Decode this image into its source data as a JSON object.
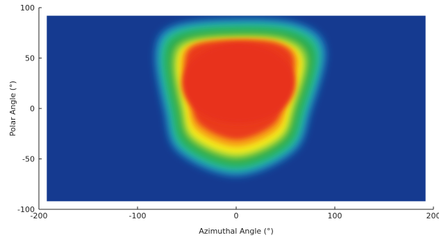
{
  "chart_data": {
    "type": "heatmap",
    "title": "",
    "xlabel": "Azimuthal Angle (°)",
    "ylabel": "Polar Angle (°)",
    "xlim": [
      -200,
      200
    ],
    "ylim": [
      -100,
      100
    ],
    "xticks": [
      -200,
      -100,
      0,
      100,
      200
    ],
    "yticks": [
      -100,
      -50,
      0,
      50,
      100
    ],
    "x_tick_labels": [
      "-200",
      "-100",
      "0",
      "100",
      "200"
    ],
    "y_tick_labels": [
      "-100",
      "-50",
      "0",
      "50",
      "100"
    ],
    "data_extent": {
      "x": [
        -192,
        192
      ],
      "y": [
        -92,
        92
      ]
    },
    "grid": false,
    "colormap": [
      "#16378f",
      "#1f8fd0",
      "#2cbf8a",
      "#26a84b",
      "#9fd33a",
      "#f3ea1f",
      "#f6a313",
      "#ea3a1c"
    ],
    "background_color": "#153a90",
    "hotspot": {
      "description_points": [
        {
          "x": -70,
          "y": 50
        },
        {
          "x": -55,
          "y": 72
        },
        {
          "x": 0,
          "y": 78
        },
        {
          "x": 55,
          "y": 74
        },
        {
          "x": 78,
          "y": 52
        },
        {
          "x": 65,
          "y": 0
        },
        {
          "x": 50,
          "y": -35
        },
        {
          "x": 0,
          "y": -55
        },
        {
          "x": -50,
          "y": -35
        },
        {
          "x": -62,
          "y": 0
        }
      ],
      "peak_value_region": {
        "x": [
          -55,
          60
        ],
        "y": [
          -15,
          65
        ]
      }
    }
  }
}
